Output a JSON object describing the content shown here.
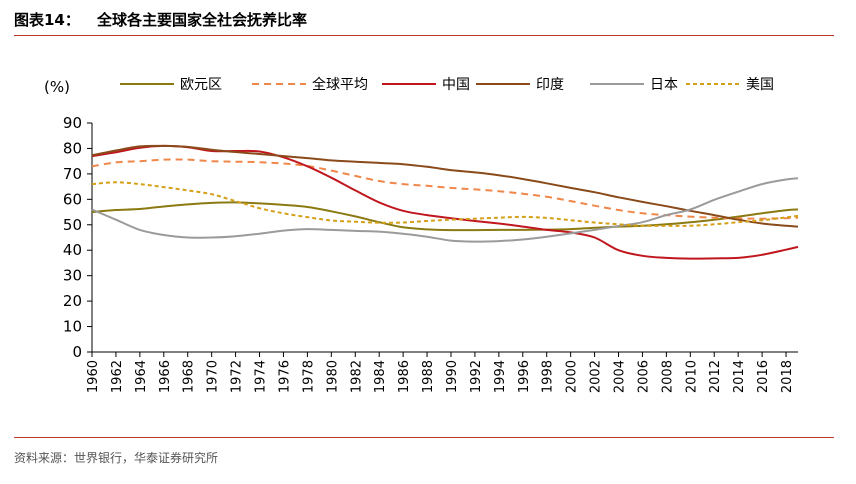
{
  "figure": {
    "label": "图表14：",
    "title": "全球各主要国家全社会抚养比率",
    "source": "资料来源：世界银行，华泰证券研究所"
  },
  "chart_data": {
    "type": "line",
    "unit_label": "(%)",
    "ylim": [
      0,
      90
    ],
    "yticks": [
      0,
      10,
      20,
      30,
      40,
      50,
      60,
      70,
      80,
      90
    ],
    "xlim": [
      1960,
      2019
    ],
    "xticks": [
      1960,
      1962,
      1964,
      1966,
      1968,
      1970,
      1972,
      1974,
      1976,
      1978,
      1980,
      1982,
      1984,
      1986,
      1988,
      1990,
      1992,
      1994,
      1996,
      1998,
      2000,
      2002,
      2004,
      2006,
      2008,
      2010,
      2012,
      2014,
      2016,
      2018
    ],
    "grid": false,
    "legend_position": "top",
    "series": [
      {
        "name": "欧元区",
        "color": "#8b7a12",
        "dash": "solid",
        "points": [
          [
            1960,
            55.0
          ],
          [
            1962,
            55.8
          ],
          [
            1964,
            56.2
          ],
          [
            1966,
            57.2
          ],
          [
            1968,
            58.0
          ],
          [
            1970,
            58.6
          ],
          [
            1972,
            58.8
          ],
          [
            1974,
            58.4
          ],
          [
            1976,
            57.8
          ],
          [
            1978,
            57.0
          ],
          [
            1980,
            55.3
          ],
          [
            1982,
            53.3
          ],
          [
            1984,
            51.0
          ],
          [
            1986,
            49.0
          ],
          [
            1988,
            48.2
          ],
          [
            1990,
            47.9
          ],
          [
            1992,
            47.9
          ],
          [
            1994,
            48.0
          ],
          [
            1996,
            48.0
          ],
          [
            1998,
            48.1
          ],
          [
            2000,
            48.3
          ],
          [
            2002,
            48.8
          ],
          [
            2004,
            49.3
          ],
          [
            2006,
            49.6
          ],
          [
            2008,
            50.2
          ],
          [
            2010,
            51.0
          ],
          [
            2012,
            52.0
          ],
          [
            2014,
            53.2
          ],
          [
            2016,
            54.5
          ],
          [
            2018,
            55.7
          ],
          [
            2019,
            56.0
          ]
        ]
      },
      {
        "name": "全球平均",
        "color": "#f0874a",
        "dash": "dashed",
        "points": [
          [
            1960,
            73.0
          ],
          [
            1962,
            74.5
          ],
          [
            1964,
            75.0
          ],
          [
            1966,
            75.6
          ],
          [
            1968,
            75.6
          ],
          [
            1970,
            75.0
          ],
          [
            1972,
            74.8
          ],
          [
            1974,
            74.6
          ],
          [
            1976,
            74.1
          ],
          [
            1978,
            73.1
          ],
          [
            1980,
            71.3
          ],
          [
            1982,
            69.2
          ],
          [
            1984,
            67.2
          ],
          [
            1986,
            66.0
          ],
          [
            1988,
            65.3
          ],
          [
            1990,
            64.5
          ],
          [
            1992,
            63.9
          ],
          [
            1994,
            63.2
          ],
          [
            1996,
            62.2
          ],
          [
            1998,
            61.0
          ],
          [
            2000,
            59.3
          ],
          [
            2002,
            57.5
          ],
          [
            2004,
            55.8
          ],
          [
            2006,
            54.5
          ],
          [
            2008,
            53.8
          ],
          [
            2010,
            53.2
          ],
          [
            2012,
            52.8
          ],
          [
            2014,
            52.5
          ],
          [
            2016,
            52.4
          ],
          [
            2018,
            52.6
          ],
          [
            2019,
            52.8
          ]
        ]
      },
      {
        "name": "中国",
        "color": "#c0171e",
        "dash": "solid",
        "points": [
          [
            1960,
            77.0
          ],
          [
            1962,
            78.5
          ],
          [
            1964,
            80.3
          ],
          [
            1966,
            81.0
          ],
          [
            1968,
            80.5
          ],
          [
            1970,
            79.0
          ],
          [
            1972,
            79.0
          ],
          [
            1974,
            78.8
          ],
          [
            1976,
            76.5
          ],
          [
            1978,
            73.0
          ],
          [
            1980,
            68.5
          ],
          [
            1982,
            63.5
          ],
          [
            1984,
            58.8
          ],
          [
            1986,
            55.5
          ],
          [
            1988,
            53.8
          ],
          [
            1990,
            52.6
          ],
          [
            1992,
            51.5
          ],
          [
            1994,
            50.5
          ],
          [
            1996,
            49.3
          ],
          [
            1998,
            48.0
          ],
          [
            2000,
            47.0
          ],
          [
            2002,
            45.0
          ],
          [
            2004,
            40.0
          ],
          [
            2006,
            37.8
          ],
          [
            2008,
            37.0
          ],
          [
            2010,
            36.7
          ],
          [
            2012,
            36.8
          ],
          [
            2014,
            37.0
          ],
          [
            2016,
            38.2
          ],
          [
            2018,
            40.2
          ],
          [
            2019,
            41.3
          ]
        ]
      },
      {
        "name": "印度",
        "color": "#8a4a1a",
        "dash": "solid",
        "points": [
          [
            1960,
            77.3
          ],
          [
            1962,
            79.2
          ],
          [
            1964,
            80.8
          ],
          [
            1966,
            81.0
          ],
          [
            1968,
            80.6
          ],
          [
            1970,
            79.5
          ],
          [
            1972,
            78.6
          ],
          [
            1974,
            77.8
          ],
          [
            1976,
            77.0
          ],
          [
            1978,
            76.2
          ],
          [
            1980,
            75.3
          ],
          [
            1982,
            74.8
          ],
          [
            1984,
            74.3
          ],
          [
            1986,
            73.8
          ],
          [
            1988,
            72.8
          ],
          [
            1990,
            71.5
          ],
          [
            1992,
            70.6
          ],
          [
            1994,
            69.5
          ],
          [
            1996,
            68.0
          ],
          [
            1998,
            66.3
          ],
          [
            2000,
            64.5
          ],
          [
            2002,
            62.8
          ],
          [
            2004,
            60.8
          ],
          [
            2006,
            59.0
          ],
          [
            2008,
            57.3
          ],
          [
            2010,
            55.5
          ],
          [
            2012,
            53.8
          ],
          [
            2014,
            52.0
          ],
          [
            2016,
            50.5
          ],
          [
            2018,
            49.6
          ],
          [
            2019,
            49.3
          ]
        ]
      },
      {
        "name": "日本",
        "color": "#9b9b9b",
        "dash": "solid",
        "points": [
          [
            1960,
            56.0
          ],
          [
            1962,
            52.0
          ],
          [
            1964,
            48.0
          ],
          [
            1966,
            46.0
          ],
          [
            1968,
            45.0
          ],
          [
            1970,
            45.0
          ],
          [
            1972,
            45.5
          ],
          [
            1974,
            46.5
          ],
          [
            1976,
            47.7
          ],
          [
            1978,
            48.3
          ],
          [
            1980,
            48.0
          ],
          [
            1982,
            47.6
          ],
          [
            1984,
            47.3
          ],
          [
            1986,
            46.5
          ],
          [
            1988,
            45.3
          ],
          [
            1990,
            43.8
          ],
          [
            1992,
            43.4
          ],
          [
            1994,
            43.6
          ],
          [
            1996,
            44.2
          ],
          [
            1998,
            45.3
          ],
          [
            2000,
            46.6
          ],
          [
            2002,
            48.0
          ],
          [
            2004,
            49.5
          ],
          [
            2006,
            51.0
          ],
          [
            2008,
            53.8
          ],
          [
            2010,
            56.0
          ],
          [
            2012,
            59.8
          ],
          [
            2014,
            63.0
          ],
          [
            2016,
            66.0
          ],
          [
            2018,
            67.8
          ],
          [
            2019,
            68.3
          ]
        ]
      },
      {
        "name": "美国",
        "color": "#d4a017",
        "dash": "dotted",
        "points": [
          [
            1960,
            66.0
          ],
          [
            1962,
            66.7
          ],
          [
            1964,
            66.0
          ],
          [
            1966,
            64.8
          ],
          [
            1968,
            63.5
          ],
          [
            1970,
            62.0
          ],
          [
            1972,
            59.3
          ],
          [
            1974,
            56.5
          ],
          [
            1976,
            54.5
          ],
          [
            1978,
            53.0
          ],
          [
            1980,
            51.7
          ],
          [
            1982,
            51.2
          ],
          [
            1984,
            50.8
          ],
          [
            1986,
            50.9
          ],
          [
            1988,
            51.5
          ],
          [
            1990,
            52.0
          ],
          [
            1992,
            52.4
          ],
          [
            1994,
            52.8
          ],
          [
            1996,
            53.1
          ],
          [
            1998,
            52.7
          ],
          [
            2000,
            51.8
          ],
          [
            2002,
            50.9
          ],
          [
            2004,
            50.2
          ],
          [
            2006,
            49.6
          ],
          [
            2008,
            49.6
          ],
          [
            2010,
            49.6
          ],
          [
            2012,
            50.2
          ],
          [
            2014,
            51.0
          ],
          [
            2016,
            51.8
          ],
          [
            2018,
            52.9
          ],
          [
            2019,
            53.5
          ]
        ]
      }
    ]
  }
}
